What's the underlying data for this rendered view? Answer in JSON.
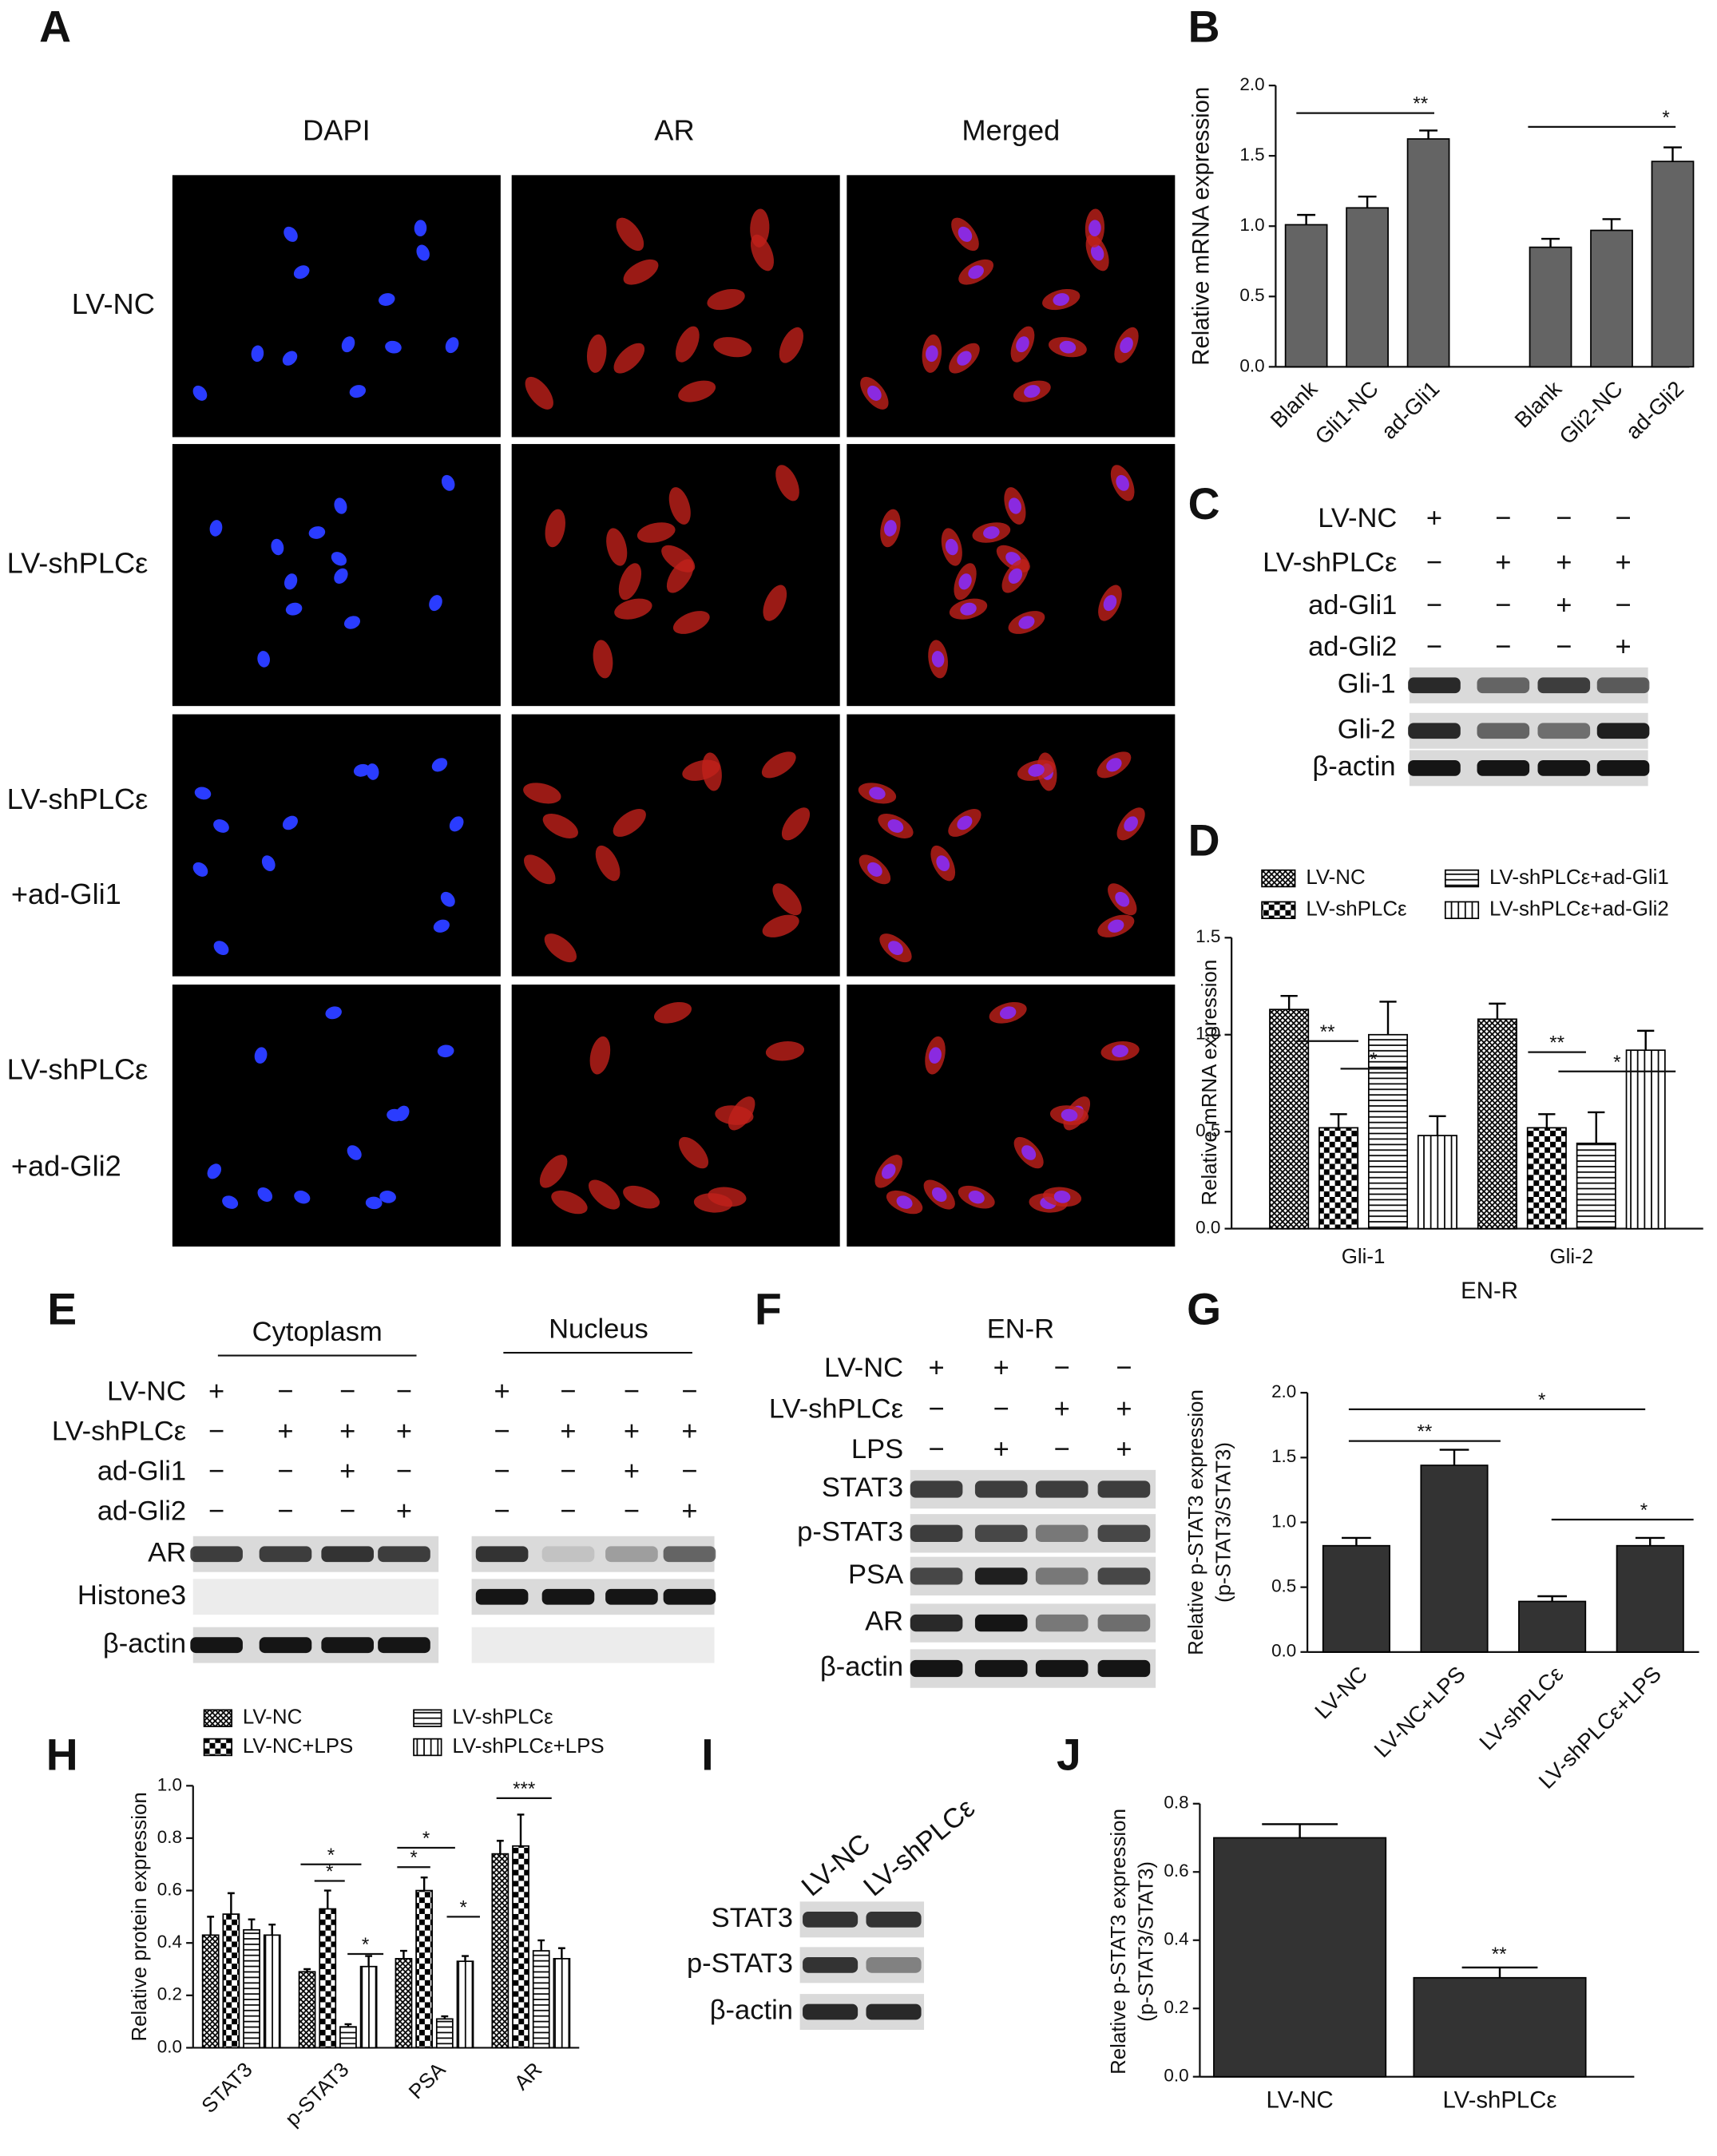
{
  "panel_labels": [
    "A",
    "B",
    "C",
    "D",
    "E",
    "F",
    "G",
    "H",
    "I",
    "J"
  ],
  "panel_a": {
    "columns": [
      "DAPI",
      "AR",
      "Merged"
    ],
    "rows": [
      [
        "LV-NC"
      ],
      [
        "LV-shPLCε"
      ],
      [
        "LV-shPLCε",
        "+ad-Gli1"
      ],
      [
        "LV-shPLCε",
        "+ad-Gli2"
      ]
    ]
  },
  "chart_data": [
    {
      "type": "bar",
      "ylabel": "Relative mRNA expression",
      "categories": [
        "Blank",
        "Gli1-NC",
        "ad-Gli1",
        null,
        "Blank",
        "Gli2-NC",
        "ad-Gli2"
      ],
      "values": [
        1.01,
        1.13,
        1.62,
        null,
        0.85,
        0.97,
        1.46
      ],
      "errors": [
        0.07,
        0.08,
        0.06,
        null,
        0.06,
        0.08,
        0.1
      ],
      "color": "#646464",
      "ylim": [
        0,
        2
      ],
      "yticks": [
        {
          "value": 0,
          "label": "0.0"
        },
        0.5,
        {
          "value": 1,
          "label": "1.0"
        },
        1.5,
        {
          "value": 2,
          "label": "2.0"
        }
      ],
      "annotations": [
        "**",
        "*"
      ]
    },
    {
      "type": "bar",
      "ylabel": "Relative mRNA expression",
      "xlabel": "EN-R",
      "categories": [
        "Gli-1",
        "Gli-2"
      ],
      "series": [
        {
          "name": "LV-NC",
          "pattern": "crosshatch",
          "values": [
            1.13,
            1.08
          ],
          "errors": [
            0.07,
            0.08
          ]
        },
        {
          "name": "LV-shPLCε",
          "pattern": "checker",
          "values": [
            0.52,
            0.52
          ],
          "errors": [
            0.07,
            0.07
          ]
        },
        {
          "name": "LV-shPLCε+ad-Gli1",
          "pattern": "hlines",
          "values": [
            1.0,
            0.44
          ],
          "errors": [
            0.17,
            0.16
          ]
        },
        {
          "name": "LV-shPLCε+ad-Gli2",
          "pattern": "vlines",
          "values": [
            0.48,
            0.92
          ],
          "errors": [
            0.1,
            0.1
          ]
        }
      ],
      "ylim": [
        0,
        1.5
      ],
      "yticks": [
        {
          "value": 0,
          "label": "0.0"
        },
        0.5,
        {
          "value": 1,
          "label": "1.0"
        },
        1.5
      ],
      "annotations": [
        "**",
        "*",
        "**",
        "*"
      ]
    },
    {
      "type": "bar",
      "ylabel": [
        "Relative p-STAT3 expression",
        "(p-STAT3/STAT3)"
      ],
      "categories": [
        "LV-NC",
        "LV-NC+LPS",
        "LV-shPLCε",
        "LV-shPLCε+LPS"
      ],
      "values": [
        0.82,
        1.44,
        0.39,
        0.82
      ],
      "errors": [
        0.06,
        0.12,
        0.04,
        0.06
      ],
      "color": "#333333",
      "ylim": [
        0,
        2
      ],
      "yticks": [
        {
          "value": 0,
          "label": "0.0"
        },
        0.5,
        {
          "value": 1,
          "label": "1.0"
        },
        1.5,
        {
          "value": 2,
          "label": "2.0"
        }
      ],
      "annotations": [
        "**",
        "*",
        "*"
      ]
    },
    {
      "type": "bar",
      "ylabel": "Relative protein expression",
      "categories": [
        "STAT3",
        "p-STAT3",
        "PSA",
        "AR"
      ],
      "series": [
        {
          "name": "LV-NC",
          "pattern": "crosshatch",
          "values": [
            0.43,
            0.29,
            0.34,
            0.74
          ],
          "errors": [
            0.07,
            0.01,
            0.03,
            0.05
          ]
        },
        {
          "name": "LV-NC+LPS",
          "pattern": "checker",
          "values": [
            0.51,
            0.53,
            0.6,
            0.77
          ],
          "errors": [
            0.08,
            0.07,
            0.05,
            0.12
          ]
        },
        {
          "name": "LV-shPLCε",
          "pattern": "hlines",
          "values": [
            0.45,
            0.08,
            0.11,
            0.37
          ],
          "errors": [
            0.04,
            0.01,
            0.01,
            0.04
          ]
        },
        {
          "name": "LV-shPLCε+LPS",
          "pattern": "vlines",
          "values": [
            0.43,
            0.31,
            0.33,
            0.34
          ],
          "errors": [
            0.04,
            0.04,
            0.02,
            0.04
          ]
        }
      ],
      "ylim": [
        0,
        1
      ],
      "yticks": [
        {
          "value": 0,
          "label": "0.0"
        },
        0.2,
        0.4,
        0.6,
        0.8,
        {
          "value": 1,
          "label": "1.0"
        }
      ],
      "annotations": [
        "*",
        "*",
        "*",
        "*",
        "*",
        "*",
        "***"
      ]
    },
    {
      "type": "bar",
      "ylabel": [
        "Relative p-STAT3 expression",
        "(p-STAT3/STAT3)"
      ],
      "categories": [
        "LV-NC",
        "LV-shPLCε"
      ],
      "values": [
        0.7,
        0.29
      ],
      "errors": [
        0.04,
        0.03
      ],
      "color": "#333333",
      "ylim": [
        0,
        0.8
      ],
      "yticks": [
        {
          "value": 0,
          "label": "0.0"
        },
        0.2,
        0.4,
        0.6,
        0.8
      ],
      "annotations": [
        "**"
      ]
    }
  ],
  "blots": {
    "C": {
      "conditions": [
        {
          "name": "LV-NC",
          "signs": [
            "+",
            "−",
            "−",
            "−"
          ]
        },
        {
          "name": "LV-shPLCε",
          "signs": [
            "−",
            "+",
            "+",
            "+"
          ]
        },
        {
          "name": "ad-Gli1",
          "signs": [
            "−",
            "−",
            "+",
            "−"
          ]
        },
        {
          "name": "ad-Gli2",
          "signs": [
            "−",
            "−",
            "−",
            "+"
          ]
        }
      ],
      "bands": [
        "Gli-1",
        "Gli-2",
        "β-actin"
      ]
    },
    "E": {
      "headers": [
        "Cytoplasm",
        "Nucleus"
      ],
      "conditions": [
        {
          "name": "LV-NC",
          "signs": [
            "+",
            "−",
            "−",
            "−",
            "+",
            "−",
            "−",
            "−"
          ]
        },
        {
          "name": "LV-shPLCε",
          "signs": [
            "−",
            "+",
            "+",
            "+",
            "−",
            "+",
            "+",
            "+"
          ]
        },
        {
          "name": "ad-Gli1",
          "signs": [
            "−",
            "−",
            "+",
            "−",
            "−",
            "−",
            "+",
            "−"
          ]
        },
        {
          "name": "ad-Gli2",
          "signs": [
            "−",
            "−",
            "−",
            "+",
            "−",
            "−",
            "−",
            "+"
          ]
        }
      ],
      "bands": [
        "AR",
        "Histone3",
        "β-actin"
      ]
    },
    "F": {
      "headers": [
        "EN-R"
      ],
      "conditions": [
        {
          "name": "LV-NC",
          "signs": [
            "+",
            "+",
            "−",
            "−"
          ]
        },
        {
          "name": "LV-shPLCε",
          "signs": [
            "−",
            "−",
            "+",
            "+"
          ]
        },
        {
          "name": "LPS",
          "signs": [
            "−",
            "+",
            "−",
            "+"
          ]
        }
      ],
      "bands": [
        "STAT3",
        "p-STAT3",
        "PSA",
        "AR",
        "β-actin"
      ]
    },
    "I": {
      "lanes": [
        "LV-NC",
        "LV-shPLCε"
      ],
      "bands": [
        "STAT3",
        "p-STAT3",
        "β-actin"
      ]
    }
  }
}
